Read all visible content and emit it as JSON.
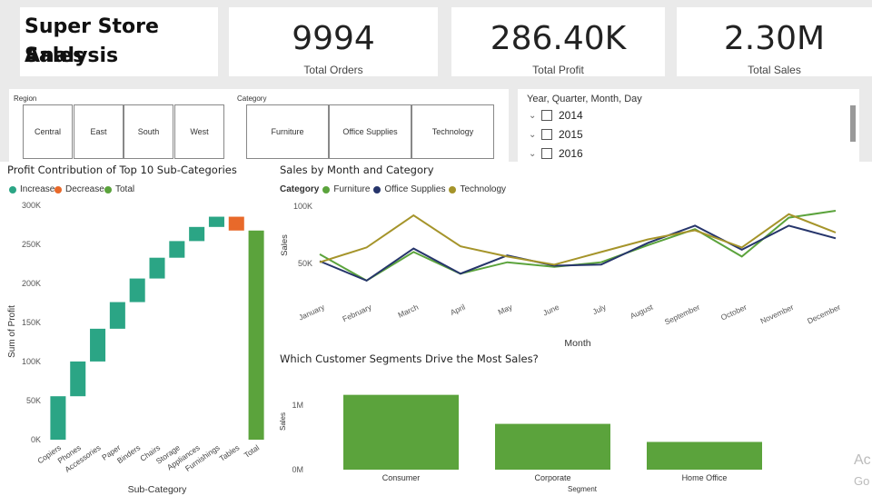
{
  "report": {
    "title_line1": "Super Store Sales",
    "title_line2": "Analysis"
  },
  "kpis": [
    {
      "value": "9994",
      "label": "Total Orders"
    },
    {
      "value": "286.40K",
      "label": "Total Profit"
    },
    {
      "value": "2.30M",
      "label": "Total Sales"
    }
  ],
  "slicers": {
    "region": {
      "label": "Region",
      "options": [
        "Central",
        "East",
        "South",
        "West"
      ]
    },
    "category": {
      "label": "Category",
      "options": [
        "Furniture",
        "Office Supplies",
        "Technology"
      ]
    },
    "date": {
      "label": "Year, Quarter, Month, Day",
      "years": [
        "2014",
        "2015",
        "2016"
      ]
    }
  },
  "colors": {
    "increase": "#2ba585",
    "decrease": "#e8692a",
    "total": "#5ba33c",
    "furniture": "#5ba33c",
    "office": "#26356b",
    "technology": "#a5942a",
    "bar": "#5ba33c"
  },
  "watermark": {
    "line1": "Ac",
    "line2": "Go"
  },
  "chart_data": [
    {
      "type": "bar",
      "subtype": "waterfall",
      "title": "Profit Contribution of Top 10 Sub-Categories",
      "legend": [
        "Increase",
        "Decrease",
        "Total"
      ],
      "xlabel": "Sub-Category",
      "ylabel": "Sum of Profit",
      "ylim": [
        0,
        300000
      ],
      "yticks": [
        "0K",
        "50K",
        "100K",
        "150K",
        "200K",
        "250K",
        "300K"
      ],
      "categories": [
        "Copiers",
        "Phones",
        "Accessories",
        "Paper",
        "Binders",
        "Chairs",
        "Storage",
        "Appliances",
        "Furnishings",
        "Tables",
        "Total"
      ],
      "values": [
        55600,
        44500,
        41900,
        34100,
        30200,
        26600,
        21300,
        18100,
        13100,
        -17700,
        267700
      ],
      "kinds": [
        "increase",
        "increase",
        "increase",
        "increase",
        "increase",
        "increase",
        "increase",
        "increase",
        "increase",
        "decrease",
        "total"
      ]
    },
    {
      "type": "line",
      "title": "Sales by Month and Category",
      "legend_title": "Category",
      "xlabel": "Month",
      "ylabel": "Sales",
      "ylim": [
        0,
        100000
      ],
      "yticks": [
        "50K",
        "100K"
      ],
      "categories": [
        "January",
        "February",
        "March",
        "April",
        "May",
        "June",
        "July",
        "August",
        "September",
        "October",
        "November",
        "December"
      ],
      "series": [
        {
          "name": "Furniture",
          "values": [
            58000,
            35000,
            60000,
            41000,
            51000,
            47000,
            51000,
            66000,
            80000,
            56000,
            90000,
            96000
          ]
        },
        {
          "name": "Office Supplies",
          "values": [
            52000,
            35000,
            63000,
            41000,
            57000,
            48000,
            49000,
            68000,
            83000,
            62000,
            83000,
            72000
          ]
        },
        {
          "name": "Technology",
          "values": [
            51000,
            64000,
            92000,
            65000,
            56000,
            49000,
            60000,
            71000,
            79000,
            64000,
            93000,
            77000
          ]
        }
      ]
    },
    {
      "type": "bar",
      "title": "Which Customer Segments Drive the Most Sales?",
      "xlabel": "Segment",
      "ylabel": "Sales",
      "ylim": [
        0,
        1300000
      ],
      "yticks": [
        "0M",
        "1M"
      ],
      "categories": [
        "Consumer",
        "Corporate",
        "Home Office"
      ],
      "values": [
        1160000,
        710000,
        430000
      ]
    }
  ]
}
